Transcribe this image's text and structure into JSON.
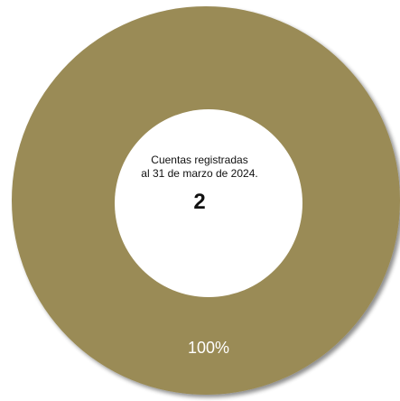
{
  "chart_data": {
    "type": "pie",
    "title": "",
    "center_label_line1": "Cuentas registradas",
    "center_label_line2": "al 31 de marzo de 2024.",
    "center_value": "2",
    "slices": [
      {
        "name": "",
        "value": 100,
        "label": "100%",
        "color": "#9a8b57"
      }
    ],
    "hole_color": "#ffffff",
    "shadow": true
  }
}
